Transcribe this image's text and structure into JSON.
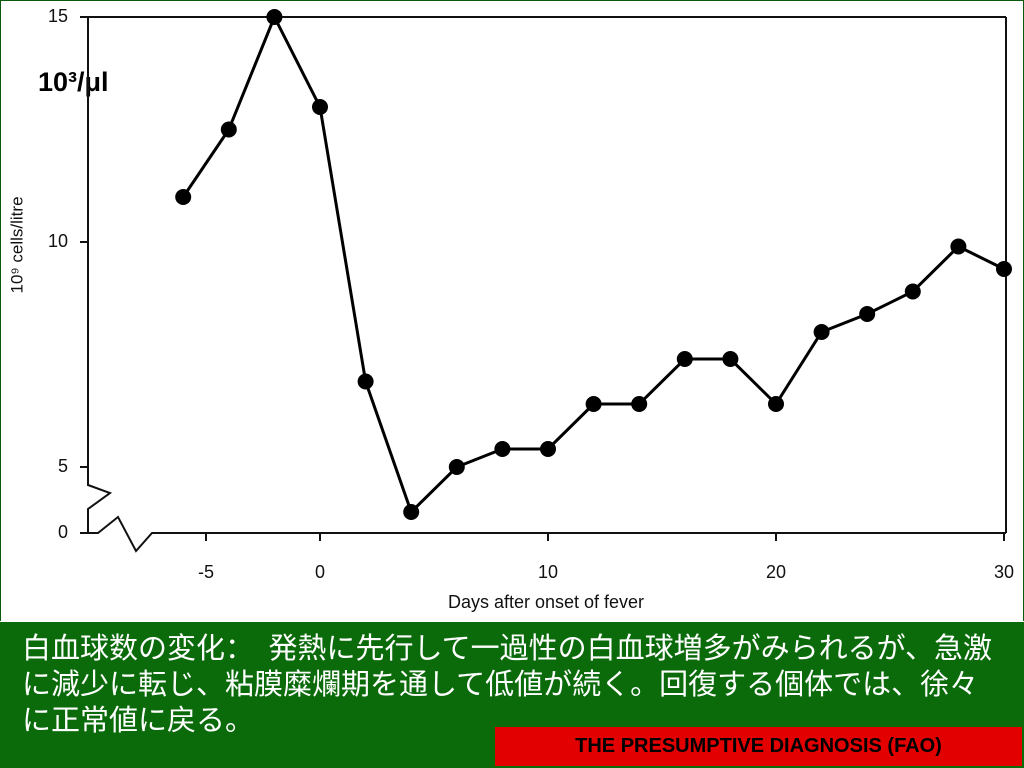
{
  "chart_data": {
    "type": "line",
    "annotation": "10³/μl",
    "y_label": "10⁹ cells/litre",
    "x_label": "Days after onset of fever",
    "x": [
      -6,
      -4,
      -2,
      0,
      2,
      4,
      6,
      8,
      10,
      12,
      14,
      16,
      18,
      20,
      22,
      24,
      26,
      28,
      30
    ],
    "values": [
      11.0,
      12.5,
      15.0,
      13.0,
      6.9,
      4.0,
      5.0,
      5.4,
      5.4,
      6.4,
      6.4,
      7.4,
      7.4,
      6.4,
      8.0,
      8.4,
      8.9,
      9.9,
      9.4
    ],
    "color": "#000000",
    "xlim": [
      -10,
      30
    ],
    "xticks": [
      -5,
      0,
      10,
      20,
      30
    ],
    "ylim": [
      0,
      15
    ],
    "yticks": [
      0,
      5,
      10,
      15
    ],
    "axis_break": true
  },
  "caption": "白血球数の変化：　発熱に先行して一過性の白血球増多がみられるが、急激に減少に転じ、粘膜糜爛期を通して低値が続く。回復する個体では、徐々に正常値に戻る。",
  "source": "THE PRESUMPTIVE DIAGNOSIS (FAO)"
}
